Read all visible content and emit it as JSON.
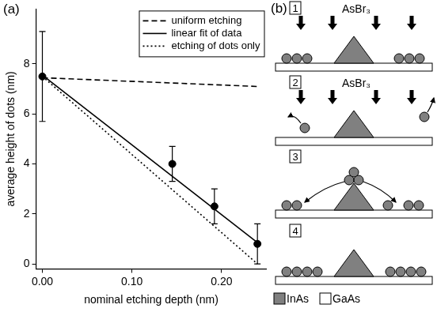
{
  "chart_data": {
    "type": "scatter",
    "title": "(a)",
    "x_label": "nominal etching depth (nm)",
    "y_label": "average height of dots (nm)",
    "xlim": [
      -0.007,
      0.25
    ],
    "xticks": [
      {
        "value": 0,
        "label": "0.00"
      },
      {
        "value": 0.1,
        "label": "0.10"
      },
      {
        "value": 0.2,
        "label": "0.20"
      }
    ],
    "ylim": [
      -0.2,
      10.2
    ],
    "yticks": [
      0,
      2,
      4,
      6,
      8
    ],
    "grid": false,
    "legend": "upper right",
    "series": [
      {
        "name": "uniform etching",
        "type": "line",
        "line_style": "dashed",
        "color": "#000000",
        "x": [
          0,
          0.24
        ],
        "values": [
          7.45,
          7.1
        ]
      },
      {
        "name": "linear fit of data",
        "type": "line",
        "line_style": "solid",
        "color": "#000000",
        "x": [
          0,
          0.24
        ],
        "values": [
          7.55,
          0.85
        ]
      },
      {
        "name": "etching of dots only",
        "type": "line",
        "line_style": "dotted",
        "color": "#000000",
        "x": [
          0,
          0.24
        ],
        "values": [
          7.5,
          0
        ]
      },
      {
        "type": "scatter",
        "marker": "circle",
        "color": "#000000",
        "x": [
          0,
          0.145,
          0.192,
          0.24
        ],
        "values": [
          7.5,
          4.0,
          2.3,
          0.8
        ],
        "errors": [
          1.8,
          0.7,
          0.7,
          0.8
        ]
      }
    ]
  },
  "diagram": {
    "label": "(b)",
    "steps": [
      {
        "number": "1",
        "label": "AsBr₃"
      },
      {
        "number": "2",
        "label": "AsBr₃"
      },
      {
        "number": "3"
      },
      {
        "number": "4"
      }
    ],
    "legend": [
      {
        "label": "InAs",
        "color": "#808080"
      },
      {
        "label": "GaAs",
        "color": "#ffffff"
      }
    ]
  }
}
